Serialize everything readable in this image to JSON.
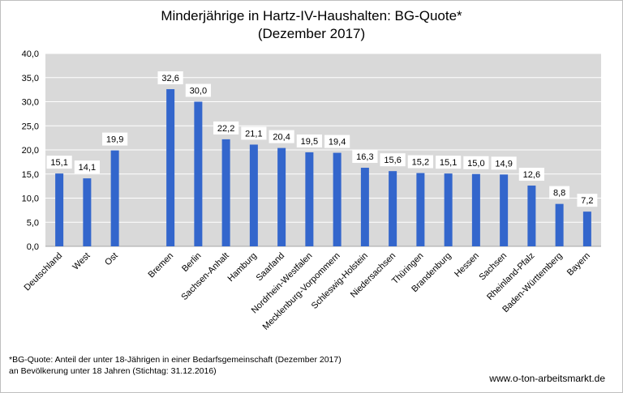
{
  "chart_data": {
    "type": "bar",
    "title": [
      "Minderjährige in Hartz-IV-Haushalten: BG-Quote*",
      "(Dezember 2017)"
    ],
    "xlabel": "",
    "ylabel": "",
    "ylim": [
      0,
      40
    ],
    "yticks": [
      "0,0",
      "5,0",
      "10,0",
      "15,0",
      "20,0",
      "25,0",
      "30,0",
      "35,0",
      "40,0"
    ],
    "grid": true,
    "legend": "none",
    "categories": [
      "Deutschland",
      "West",
      "Ost",
      "",
      "Bremen",
      "Berlin",
      "Sachsen-Anhalt",
      "Hamburg",
      "Saarland",
      "Nordrhein-Westfalen",
      "Mecklenburg-Vorpommern",
      "Schleswig-Holstein",
      "Niedersachsen",
      "Thüringen",
      "Brandenburg",
      "Hessen",
      "Sachsen",
      "Rheinland-Pfalz",
      "Baden-Württemberg",
      "Bayern"
    ],
    "values": [
      15.1,
      14.1,
      19.9,
      null,
      32.6,
      30.0,
      22.2,
      21.1,
      20.4,
      19.5,
      19.4,
      16.3,
      15.6,
      15.2,
      15.1,
      15.0,
      14.9,
      12.6,
      8.8,
      7.2
    ],
    "value_labels": [
      "15,1",
      "14,1",
      "19,9",
      "",
      "32,6",
      "30,0",
      "22,2",
      "21,1",
      "20,4",
      "19,5",
      "19,4",
      "16,3",
      "15,6",
      "15,2",
      "15,1",
      "15,0",
      "14,9",
      "12,6",
      "8,8",
      "7,2"
    ],
    "colors": {
      "bar": "#3366cc",
      "plot_bg": "#d9d9d9",
      "grid": "#ffffff"
    }
  },
  "footnote": {
    "line1": "*BG-Quote: Anteil der unter 18-Jährigen in einer Bedarfsgemeinschaft (Dezember 2017)",
    "line2": "an Bevölkerung unter 18 Jahren (Stichtag: 31.12.2016)"
  },
  "source": "www.o-ton-arbeitsmarkt.de"
}
